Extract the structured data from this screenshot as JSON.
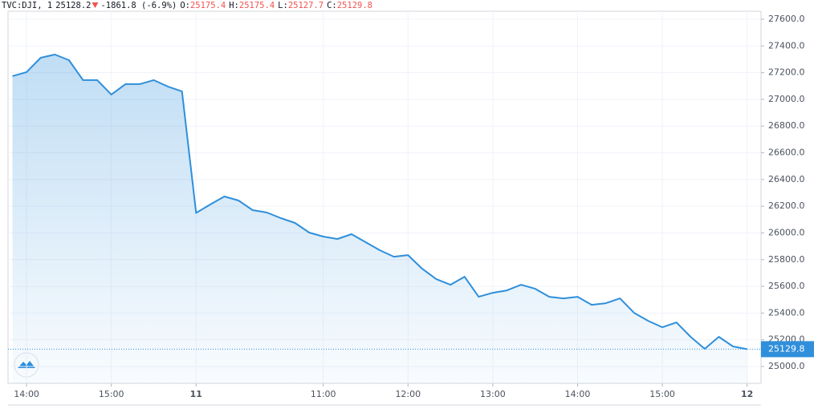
{
  "chart_data": {
    "type": "area",
    "header": [
      "TVC:DJI, 1",
      "25128.2",
      "-1861.8 (-6.9%)",
      "O:",
      "25175.4",
      "H:",
      "25175.4",
      "L:",
      "25127.7",
      "C:",
      "25129.8"
    ],
    "categories": [
      null,
      "14:00",
      null,
      null,
      null,
      null,
      null,
      "15:00",
      null,
      null,
      null,
      null,
      null,
      "11",
      null,
      null,
      null,
      null,
      null,
      null,
      null,
      null,
      "11:00",
      null,
      null,
      null,
      null,
      null,
      "12:00",
      null,
      null,
      null,
      null,
      null,
      "13:00",
      null,
      null,
      null,
      null,
      null,
      "14:00",
      null,
      null,
      null,
      null,
      null,
      "15:00",
      null,
      null,
      null,
      null,
      null,
      "12"
    ],
    "values": [
      27174,
      27204,
      27312,
      27336,
      27294,
      27144,
      27144,
      27036,
      27114,
      27114,
      27144,
      27096,
      27060,
      26150,
      26213,
      26273,
      26243,
      26171,
      26153,
      26111,
      26075,
      26003,
      25973,
      25955,
      25991,
      25931,
      25871,
      25822,
      25834,
      25732,
      25654,
      25612,
      25672,
      25522,
      25552,
      25570,
      25612,
      25582,
      25522,
      25510,
      25522,
      25462,
      25474,
      25510,
      25402,
      25342,
      25294,
      25330,
      25222,
      25132,
      25222,
      25150,
      25130
    ],
    "color": "#2f8fdb",
    "last_value": 25129.8,
    "ylim": [
      24874,
      27660
    ],
    "yticks": [
      {
        "value": 25000,
        "label": "25000.0"
      },
      {
        "value": 25200,
        "label": "25200.0"
      },
      {
        "value": 25400,
        "label": "25400.0"
      },
      {
        "value": 25600,
        "label": "25600.0"
      },
      {
        "value": 25800,
        "label": "25800.0"
      },
      {
        "value": 26000,
        "label": "26000.0"
      },
      {
        "value": 26200,
        "label": "26200.0"
      },
      {
        "value": 26400,
        "label": "26400.0"
      },
      {
        "value": 26600,
        "label": "26600.0"
      },
      {
        "value": 26800,
        "label": "26800.0"
      },
      {
        "value": 27000,
        "label": "27000.0"
      },
      {
        "value": 27200,
        "label": "27200.0"
      },
      {
        "value": 27400,
        "label": "27400.0"
      },
      {
        "value": 27600,
        "label": "27600.0"
      }
    ],
    "grid": true
  }
}
